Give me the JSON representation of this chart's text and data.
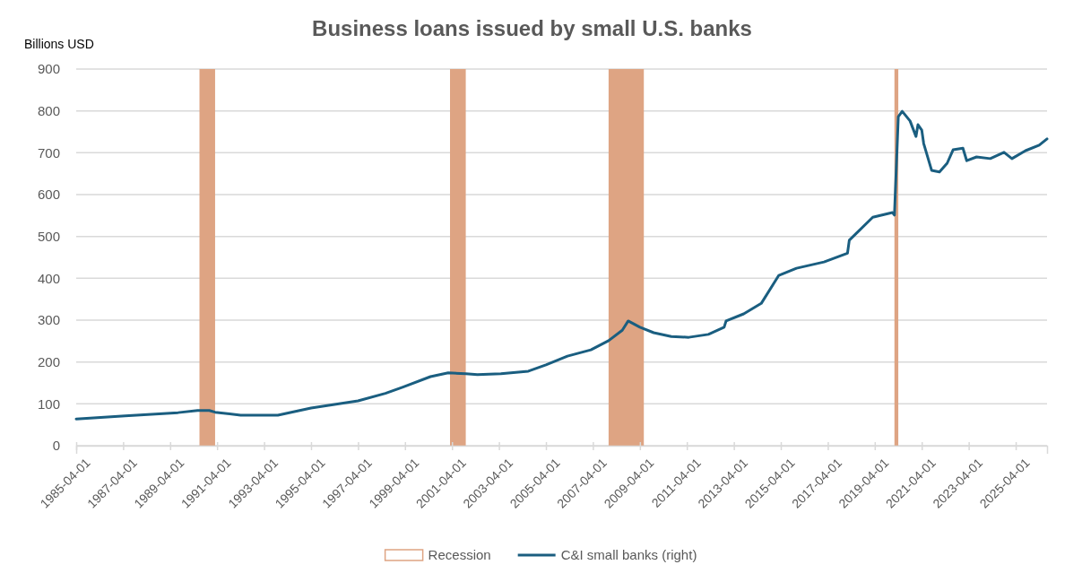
{
  "chart_data": {
    "type": "line",
    "title": "Business loans issued by small U.S. banks",
    "ylabel": "Billions USD",
    "x": [
      "1985-04",
      "1987-05",
      "1989-08",
      "1990-06",
      "1990-12",
      "1991-03",
      "1992-04",
      "1993-11",
      "1995-04",
      "1997-04",
      "1998-06",
      "1999-03",
      "2000-05",
      "2001-02",
      "2001-11",
      "2002-05",
      "2003-05",
      "2004-07",
      "2005-04",
      "2006-03",
      "2007-03",
      "2007-12",
      "2008-07",
      "2008-10",
      "2009-04",
      "2009-11",
      "2010-08",
      "2011-05",
      "2012-03",
      "2012-11",
      "2012-12",
      "2013-09",
      "2014-06",
      "2015-03",
      "2015-12",
      "2017-02",
      "2018-02",
      "2018-03",
      "2018-08",
      "2019-03",
      "2020-01",
      "2020-02",
      "2020-04",
      "2020-06",
      "2020-10",
      "2021-01",
      "2021-02",
      "2021-04",
      "2021-05",
      "2021-09",
      "2022-01",
      "2022-05",
      "2022-08",
      "2023-01",
      "2023-03",
      "2023-08",
      "2024-03",
      "2024-10",
      "2025-02",
      "2025-09",
      "2026-04",
      "2026-08"
    ],
    "series": [
      {
        "name": "C&I small banks (right)",
        "color": "#1a5e80",
        "values": [
          64,
          71,
          79,
          84,
          84,
          80,
          73,
          73,
          90,
          107,
          125,
          140,
          165,
          174,
          172,
          170,
          172,
          178,
          193,
          214,
          229,
          251,
          276,
          298,
          283,
          270,
          261,
          259,
          266,
          283,
          298,
          315,
          340,
          407,
          424,
          439,
          460,
          491,
          514,
          546,
          557,
          551,
          786,
          799,
          776,
          739,
          767,
          754,
          722,
          658,
          654,
          675,
          707,
          711,
          681,
          690,
          686,
          701,
          686,
          705,
          718,
          733
        ]
      }
    ],
    "bands": [
      {
        "axis": "x",
        "from": "1990-07",
        "to": "1991-03",
        "label": "Recession",
        "color": "#dea483"
      },
      {
        "axis": "x",
        "from": "2001-03",
        "to": "2001-11",
        "color": "#dea483"
      },
      {
        "axis": "x",
        "from": "2007-12",
        "to": "2009-06",
        "color": "#dea483"
      },
      {
        "axis": "x",
        "from": "2020-02",
        "to": "2020-04",
        "color": "#dea483"
      }
    ],
    "xlim": [
      "1985-04-01",
      "2026-08-01"
    ],
    "xticks": [
      "1985-04-01",
      "1987-04-01",
      "1989-04-01",
      "1991-04-01",
      "1993-04-01",
      "1995-04-01",
      "1997-04-01",
      "1999-04-01",
      "2001-04-01",
      "2003-04-01",
      "2005-04-01",
      "2007-04-01",
      "2009-04-01",
      "2011-04-01",
      "2013-04-01",
      "2015-04-01",
      "2017-04-01",
      "2019-04-01",
      "2021-04-01",
      "2023-04-01",
      "2025-04-01"
    ],
    "ylim": [
      0,
      900
    ],
    "yticks": [
      0,
      100,
      200,
      300,
      400,
      500,
      600,
      700,
      800,
      900
    ],
    "grid": "y",
    "legend": "bottom",
    "line_style": "solid",
    "marker": "none"
  }
}
